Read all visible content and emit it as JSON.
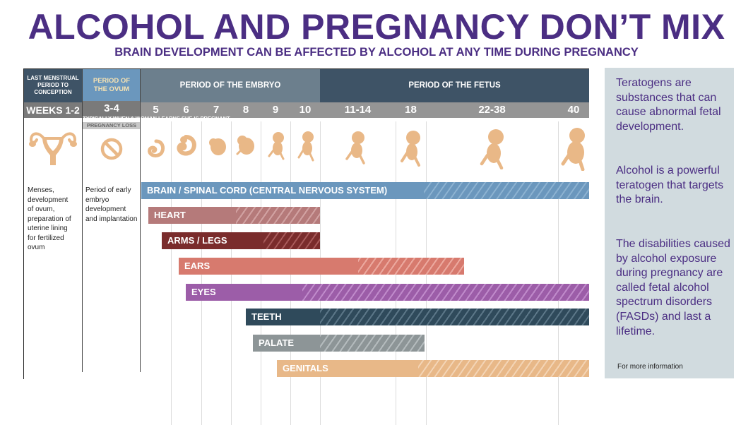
{
  "title": "ALCOHOL AND PREGNANCY DON’T MIX",
  "subtitle": "BRAIN DEVELOPMENT CAN BE AFFECTED BY ALCOHOL AT ANY TIME DURING PREGNANCY",
  "periods": [
    {
      "label": "LAST MENSTRUAL PERIOD TO CONCEPTION",
      "color": "#3e5366"
    },
    {
      "label": "PERIOD OF THE OVUM",
      "color": "#6b97bd"
    },
    {
      "label": "PERIOD OF THE EMBRYO",
      "color": "#6c7f8d"
    },
    {
      "label": "PERIOD OF THE FETUS",
      "color": "#3e5366"
    }
  ],
  "weeks": [
    "WEEKS 1-2",
    "3-4",
    "5",
    "6",
    "7",
    "8",
    "9",
    "10",
    "11-14",
    "18",
    "22-38",
    "40"
  ],
  "learns_note": "TYPICALLY WHEN A WOMAN LEARNS SHE IS PREGNANT.",
  "pregnancy_loss": "PREGNANCY LOSS",
  "descriptions": {
    "menses": "Menses, development of ovum, preparation of uterine lining for fertilized ovum",
    "ovum": "Period of early embryo development and implantation"
  },
  "bars": [
    {
      "label": "BRAIN / SPINAL CORD (CENTRAL NERVOUS SYSTEM)",
      "color": "#6b97bd"
    },
    {
      "label": "HEART",
      "color": "#b57a7a"
    },
    {
      "label": "ARMS / LEGS",
      "color": "#7a2c2c"
    },
    {
      "label": "EARS",
      "color": "#d77a6e"
    },
    {
      "label": "EYES",
      "color": "#9c5da8"
    },
    {
      "label": "TEETH",
      "color": "#2f4a5b"
    },
    {
      "label": "PALATE",
      "color": "#8d9597"
    },
    {
      "label": "GENITALS",
      "color": "#e8b888"
    }
  ],
  "sidebar": {
    "p1": "Teratogens are substances that can cause abnormal fetal development.",
    "p2": "Alcohol is a powerful teratogen that targets the brain.",
    "p3": "The disabilities caused by alcohol exposure during pregnancy are called fetal alcohol spectrum disorders (FASDs) and last a lifetime.",
    "more": "For more information"
  },
  "colors": {
    "title": "#4b2e83",
    "embryo_icon": "#e9b887",
    "ovum_icon": "#e9b887",
    "uterus_icon": "#e9b887"
  }
}
